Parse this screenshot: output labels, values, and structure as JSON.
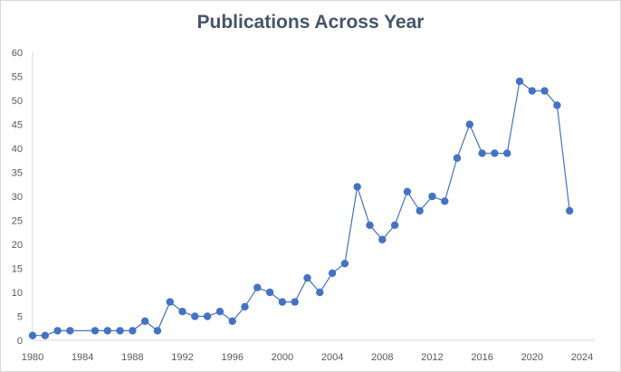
{
  "chart_data": {
    "type": "line",
    "title": "Publications Across Year",
    "xlabel": "",
    "ylabel": "",
    "xlim": [
      1980,
      2024
    ],
    "ylim": [
      0,
      60
    ],
    "x_ticks": [
      1980,
      1984,
      1988,
      1992,
      1996,
      2000,
      2004,
      2008,
      2012,
      2016,
      2020,
      2024
    ],
    "y_ticks": [
      0,
      5,
      10,
      15,
      20,
      25,
      30,
      35,
      40,
      45,
      50,
      55,
      60
    ],
    "grid": false,
    "legend": "none",
    "series": [
      {
        "color": "#4472c4",
        "marker": "circle",
        "points": [
          [
            1980,
            1
          ],
          [
            1981,
            1
          ],
          [
            1982,
            2
          ],
          [
            1983,
            2
          ],
          [
            1985,
            2
          ],
          [
            1986,
            2
          ],
          [
            1987,
            2
          ],
          [
            1988,
            2
          ],
          [
            1989,
            4
          ],
          [
            1990,
            2
          ],
          [
            1991,
            8
          ],
          [
            1992,
            6
          ],
          [
            1993,
            5
          ],
          [
            1994,
            5
          ],
          [
            1995,
            6
          ],
          [
            1996,
            4
          ],
          [
            1997,
            7
          ],
          [
            1998,
            11
          ],
          [
            1999,
            10
          ],
          [
            2000,
            8
          ],
          [
            2001,
            8
          ],
          [
            2002,
            13
          ],
          [
            2003,
            10
          ],
          [
            2004,
            14
          ],
          [
            2005,
            16
          ],
          [
            2006,
            32
          ],
          [
            2007,
            24
          ],
          [
            2008,
            21
          ],
          [
            2009,
            24
          ],
          [
            2010,
            31
          ],
          [
            2011,
            27
          ],
          [
            2012,
            30
          ],
          [
            2013,
            29
          ],
          [
            2014,
            38
          ],
          [
            2015,
            45
          ],
          [
            2016,
            39
          ],
          [
            2017,
            39
          ],
          [
            2018,
            39
          ],
          [
            2019,
            54
          ],
          [
            2020,
            52
          ],
          [
            2021,
            52
          ],
          [
            2022,
            49
          ],
          [
            2023,
            27
          ]
        ]
      }
    ]
  }
}
